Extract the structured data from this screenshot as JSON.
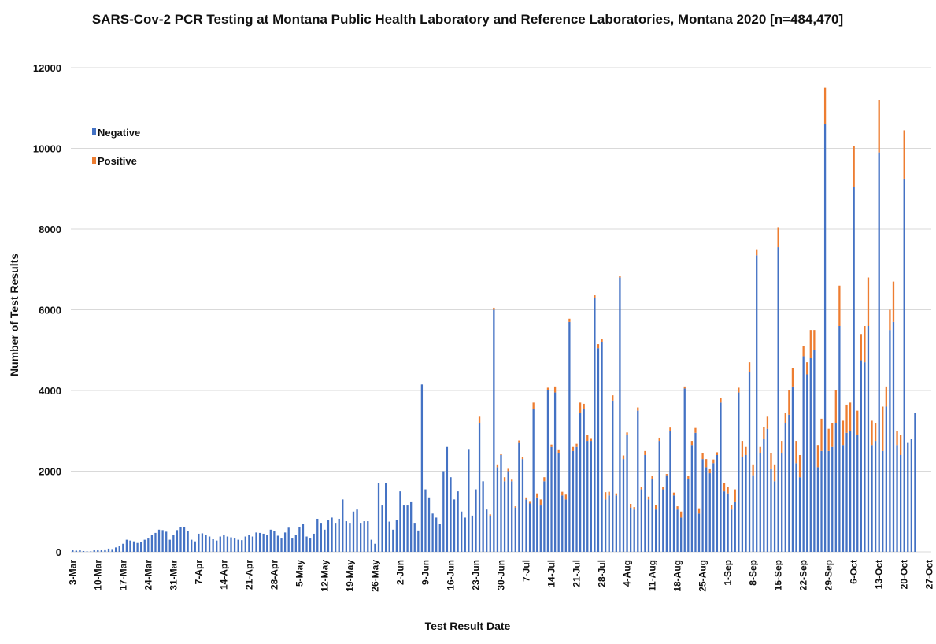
{
  "chart_data": {
    "type": "bar",
    "stacked": true,
    "title": "SARS-Cov-2 PCR Testing at Montana Public Health Laboratory and Reference Laboratories, Montana 2020 [n=484,470]",
    "xlabel": "Test Result Date",
    "ylabel": "Number of Test Results",
    "ylim": [
      0,
      12000
    ],
    "yticks": [
      0,
      2000,
      4000,
      6000,
      8000,
      10000,
      12000
    ],
    "xlim": [
      "2020-03-03",
      "2020-10-27"
    ],
    "xtick_labels": [
      "3-Mar",
      "10-Mar",
      "17-Mar",
      "24-Mar",
      "31-Mar",
      "7-Apr",
      "14-Apr",
      "21-Apr",
      "28-Apr",
      "5-May",
      "12-May",
      "19-May",
      "26-May",
      "2-Jun",
      "9-Jun",
      "16-Jun",
      "23-Jun",
      "30-Jun",
      "7-Jul",
      "14-Jul",
      "21-Jul",
      "28-Jul",
      "4-Aug",
      "11-Aug",
      "18-Aug",
      "25-Aug",
      "1-Sep",
      "8-Sep",
      "15-Sep",
      "22-Sep",
      "29-Sep",
      "6-Oct",
      "13-Oct",
      "20-Oct",
      "27-Oct"
    ],
    "grid": true,
    "legend_position": "top-left",
    "colors": {
      "negative": "#4472C4",
      "positive": "#ED7D31"
    },
    "series": [
      {
        "name": "Negative",
        "values": [
          40,
          30,
          40,
          20,
          10,
          10,
          40,
          40,
          50,
          60,
          80,
          70,
          110,
          150,
          200,
          300,
          280,
          260,
          220,
          250,
          300,
          350,
          420,
          470,
          550,
          540,
          500,
          300,
          420,
          540,
          620,
          610,
          520,
          300,
          260,
          450,
          460,
          420,
          380,
          320,
          280,
          380,
          420,
          380,
          360,
          350,
          300,
          290,
          380,
          420,
          380,
          480,
          470,
          450,
          420,
          550,
          520,
          400,
          350,
          480,
          600,
          350,
          420,
          620,
          700,
          380,
          350,
          450,
          820,
          720,
          550,
          780,
          850,
          720,
          820,
          1300,
          760,
          720,
          1000,
          1050,
          720,
          760,
          760,
          300,
          200,
          1700,
          1150,
          1700,
          750,
          550,
          800,
          1500,
          1150,
          1150,
          1250,
          720,
          530,
          4150,
          1550,
          1350,
          950,
          850,
          700,
          2000,
          2600,
          1850,
          1300,
          1500,
          1000,
          850,
          2550,
          900,
          1550,
          3200,
          1750,
          1050,
          900,
          6000,
          2100,
          2400,
          1750,
          2000,
          1750,
          1100,
          2700,
          2300,
          1300,
          1200,
          3550,
          1350,
          1150,
          1750,
          4000,
          2600,
          3950,
          2450,
          1400,
          1300,
          5700,
          2500,
          2600,
          3450,
          3550,
          2750,
          2750,
          6300,
          5050,
          5200,
          1300,
          1400,
          3750,
          1400,
          6800,
          2300,
          2900,
          1100,
          1050,
          3500,
          1550,
          2400,
          1300,
          1800,
          1050,
          2750,
          1550,
          1900,
          3000,
          1400,
          1050,
          850,
          4050,
          1800,
          2650,
          2950,
          950,
          2300,
          2100,
          1950,
          2200,
          2400,
          3700,
          1500,
          1450,
          1050,
          1250,
          3950,
          2350,
          2400,
          4450,
          1900,
          7350,
          2450,
          2800,
          3050,
          2050,
          1750,
          7550,
          2450,
          3200,
          3400,
          4100,
          2200,
          1850,
          4850,
          4400,
          4800,
          5000,
          2100,
          2500,
          10600,
          2500,
          2600,
          3200,
          5600,
          2650,
          2950,
          3000,
          9050,
          2900,
          4750,
          4700,
          5600,
          2650,
          2750,
          9900,
          2500,
          3600,
          5500,
          5700,
          2650,
          2400,
          9250,
          2700,
          2800,
          3450
        ]
      },
      {
        "name": "Positive",
        "values": [
          0,
          0,
          0,
          0,
          0,
          0,
          0,
          0,
          0,
          0,
          0,
          0,
          0,
          0,
          0,
          0,
          0,
          0,
          0,
          0,
          0,
          0,
          0,
          0,
          0,
          0,
          0,
          0,
          0,
          0,
          0,
          0,
          0,
          0,
          0,
          0,
          0,
          0,
          0,
          0,
          0,
          0,
          0,
          0,
          0,
          0,
          0,
          0,
          0,
          0,
          0,
          0,
          0,
          0,
          0,
          0,
          0,
          0,
          0,
          0,
          0,
          0,
          0,
          0,
          0,
          0,
          0,
          0,
          0,
          0,
          0,
          0,
          0,
          0,
          0,
          0,
          0,
          0,
          0,
          0,
          0,
          0,
          0,
          0,
          0,
          0,
          0,
          0,
          0,
          0,
          0,
          0,
          0,
          0,
          0,
          0,
          0,
          0,
          0,
          0,
          0,
          0,
          0,
          0,
          0,
          0,
          0,
          0,
          0,
          0,
          0,
          0,
          0,
          150,
          0,
          0,
          30,
          50,
          50,
          20,
          100,
          60,
          40,
          30,
          60,
          50,
          50,
          60,
          150,
          100,
          150,
          100,
          70,
          60,
          150,
          90,
          90,
          120,
          80,
          100,
          80,
          250,
          120,
          150,
          70,
          60,
          100,
          80,
          180,
          90,
          130,
          50,
          40,
          90,
          60,
          90,
          60,
          80,
          50,
          100,
          70,
          90,
          110,
          80,
          50,
          30,
          80,
          70,
          80,
          150,
          50,
          80,
          100,
          120,
          130,
          140,
          200,
          100,
          90,
          70,
          110,
          200,
          150,
          120,
          300,
          120,
          400,
          200,
          250,
          250,
          150,
          150,
          300,
          300,
          400,
          400,
          500,
          300,
          250,
          600,
          450,
          550,
          550,
          250,
          300,
          700,
          500,
          550,
          800,
          900,
          550,
          600,
          800,
          1000,
          600,
          700,
          700,
          1000,
          600,
          650,
          900,
          1200,
          600,
          450,
          1300,
          1100,
          500,
          500,
          1000,
          350,
          500,
          1200
        ]
      }
    ]
  }
}
